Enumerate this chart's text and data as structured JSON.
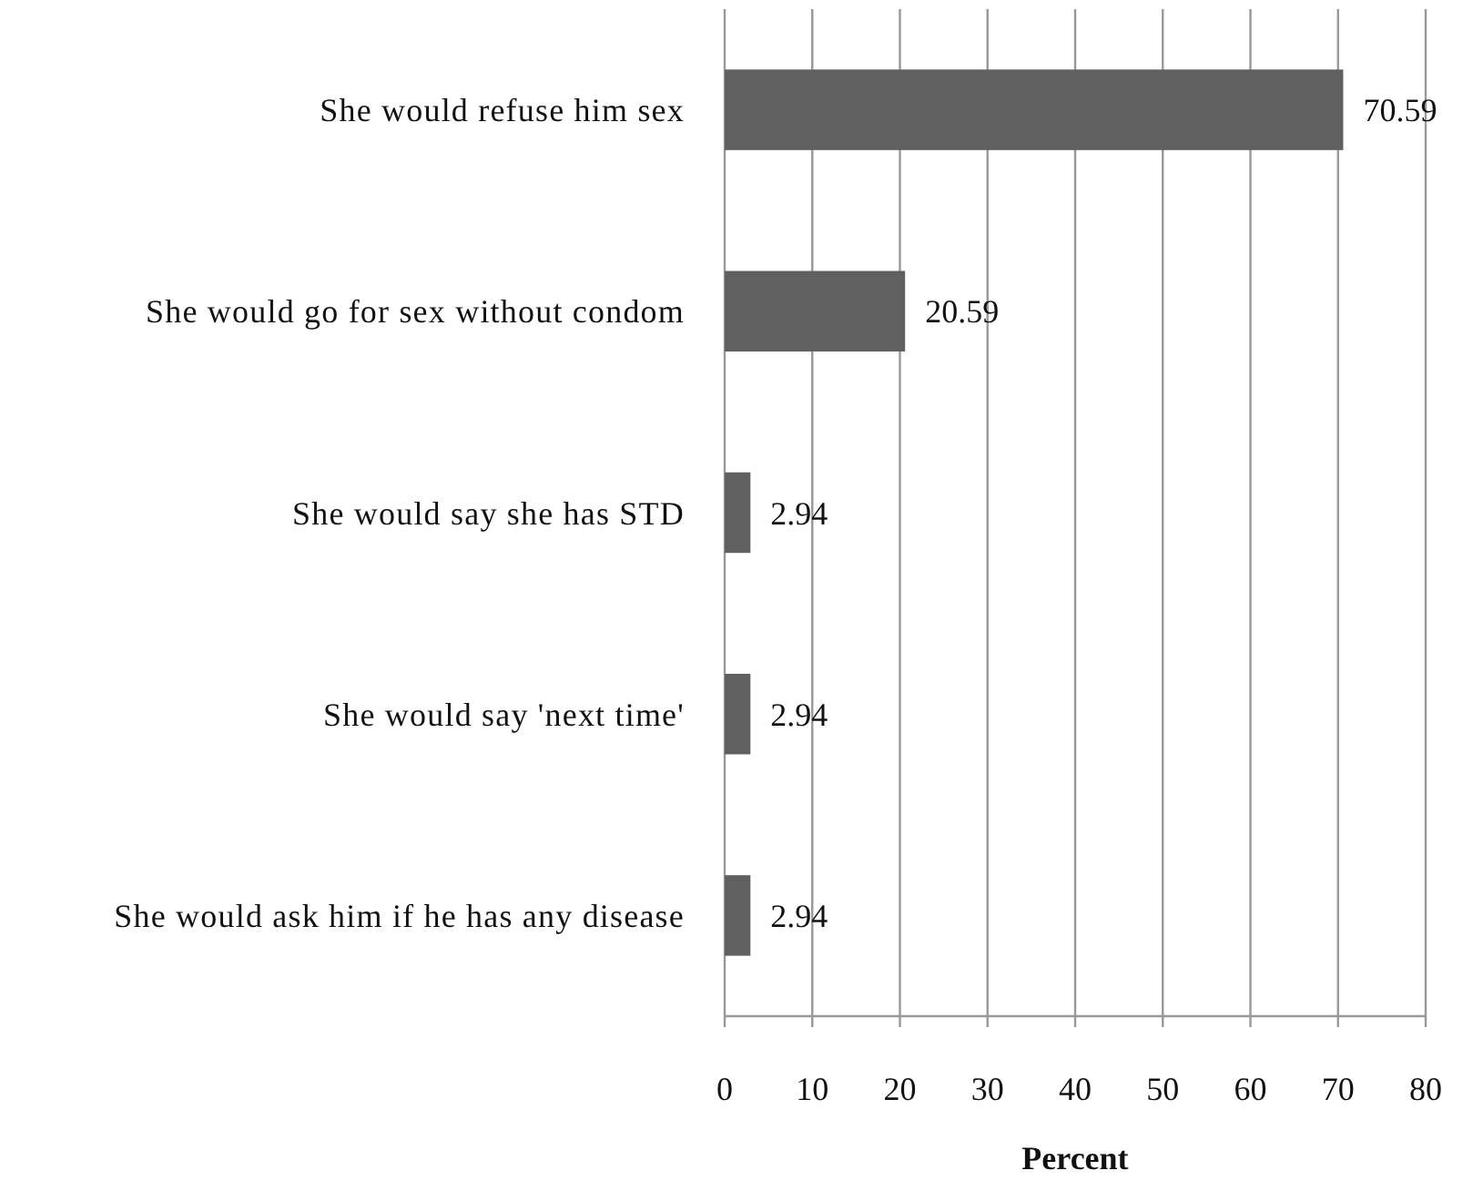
{
  "chart_data": {
    "type": "bar",
    "orientation": "horizontal",
    "xlabel": "Percent",
    "categories": [
      "She would refuse him sex",
      "She would go for sex without condom",
      "She would say she has STD",
      "She would say 'next time'",
      "She would ask him if he has any disease"
    ],
    "values": [
      70.59,
      20.59,
      2.94,
      2.94,
      2.94
    ],
    "color": "#606060",
    "xlim": [
      0,
      80
    ],
    "xticks": [
      0,
      10,
      20,
      30,
      40,
      50,
      60,
      70,
      80
    ],
    "grid": "x",
    "data_labels": true
  }
}
